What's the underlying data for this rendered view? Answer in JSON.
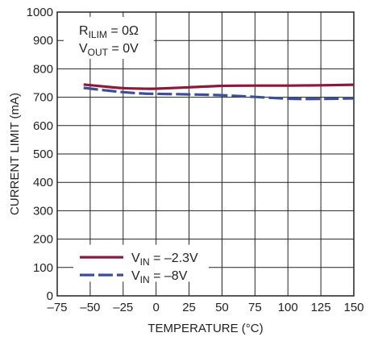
{
  "chart_data": {
    "type": "line",
    "xlabel": "TEMPERATURE (°C)",
    "ylabel": "CURRENT LIMIT (mA)",
    "xlim": [
      -75,
      150
    ],
    "ylim": [
      0,
      1000
    ],
    "xticks": [
      -75,
      -50,
      -25,
      0,
      25,
      50,
      75,
      100,
      125,
      150
    ],
    "xtick_labels": [
      "–75",
      "–50",
      "–25",
      "0",
      "25",
      "50",
      "75",
      "100",
      "125",
      "150"
    ],
    "yticks": [
      0,
      100,
      200,
      300,
      400,
      500,
      600,
      700,
      800,
      900,
      1000
    ],
    "ytick_labels": [
      "0",
      "100",
      "200",
      "300",
      "400",
      "500",
      "600",
      "700",
      "800",
      "900",
      "1000"
    ],
    "grid": true,
    "legend_position": "bottom-left",
    "annotations": [
      {
        "main": "R",
        "sub": "ILIM",
        "rest": " = 0Ω"
      },
      {
        "main": "V",
        "sub": "OUT",
        "rest": " = 0V"
      }
    ],
    "series": [
      {
        "name": "V_IN = –2.3V",
        "legend": {
          "main": "V",
          "sub": "IN",
          "rest": " = –2.3V"
        },
        "color": "#8b1a3a",
        "style": "solid",
        "x": [
          -55,
          -40,
          -25,
          -10,
          0,
          25,
          50,
          75,
          100,
          125,
          150
        ],
        "y": [
          745,
          738,
          732,
          730,
          730,
          735,
          740,
          741,
          741,
          742,
          744
        ]
      },
      {
        "name": "V_IN = –8V",
        "legend": {
          "main": "V",
          "sub": "IN",
          "rest": " = –8V"
        },
        "color": "#3a4f9a",
        "style": "dashed",
        "x": [
          -55,
          -40,
          -25,
          -10,
          0,
          25,
          50,
          75,
          100,
          125,
          150
        ],
        "y": [
          733,
          725,
          718,
          713,
          712,
          710,
          707,
          701,
          695,
          694,
          696
        ]
      }
    ]
  }
}
